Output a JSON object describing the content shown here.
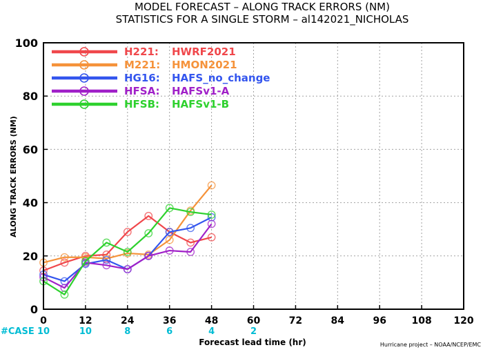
{
  "header": {
    "line1": "MODEL FORECAST – ALONG TRACK ERRORS (NM)",
    "line2": "STATISTICS FOR A SINGLE STORM – al142021_NICHOLAS"
  },
  "footer": {
    "case_label": "#CASE",
    "credit": "Hurricane project – NOAA/NCEP/EMC"
  },
  "colors": {
    "case_text": "#00bcd4",
    "grid": "#a0a0a0",
    "axis": "#000000"
  },
  "chart_data": {
    "type": "line",
    "title": "MODEL FORECAST – ALONG TRACK ERRORS (NM)",
    "subtitle": "STATISTICS FOR A SINGLE STORM – al142021_NICHOLAS",
    "xlabel": "Forecast lead time (hr)",
    "ylabel": "ALONG TRACK ERRORS (NM)",
    "xlim": [
      0,
      120
    ],
    "ylim": [
      0,
      100
    ],
    "xticks": [
      0,
      12,
      24,
      36,
      48,
      60,
      72,
      84,
      96,
      108,
      120
    ],
    "yticks": [
      0,
      20,
      40,
      60,
      80,
      100
    ],
    "grid": true,
    "legend_position": "top-left",
    "cases": [
      {
        "x": 0,
        "label": "10"
      },
      {
        "x": 12,
        "label": "10"
      },
      {
        "x": 24,
        "label": "8"
      },
      {
        "x": 36,
        "label": "6"
      },
      {
        "x": 48,
        "label": "4"
      },
      {
        "x": 60,
        "label": "2"
      }
    ],
    "series": [
      {
        "name": "H221:",
        "desc": "HWRF2021",
        "color": "#f0474b",
        "x": [
          0,
          6,
          12,
          18,
          24,
          30,
          36,
          42,
          48
        ],
        "values": [
          14.5,
          17.5,
          20,
          20.5,
          29,
          35,
          29,
          25,
          27
        ]
      },
      {
        "name": "M221:",
        "desc": "HMON2021",
        "color": "#f5923a",
        "x": [
          0,
          6,
          12,
          18,
          24,
          30,
          36,
          42,
          48
        ],
        "values": [
          17.5,
          19.5,
          19.5,
          19,
          21,
          20.5,
          26,
          37,
          46.5
        ]
      },
      {
        "name": "HG16:",
        "desc": "HAFS_no_change",
        "color": "#3355ee",
        "x": [
          0,
          6,
          12,
          18,
          24,
          30,
          36,
          42,
          48
        ],
        "values": [
          13,
          10.5,
          17,
          18.5,
          15,
          20,
          29,
          30.5,
          34.5
        ]
      },
      {
        "name": "HFSA:",
        "desc": "HAFSv1-A",
        "color": "#a020c8",
        "x": [
          0,
          6,
          12,
          18,
          24,
          30,
          36,
          42,
          48
        ],
        "values": [
          12,
          8,
          17.5,
          16.5,
          15,
          20,
          22,
          21.5,
          32
        ]
      },
      {
        "name": "HFSB:",
        "desc": "HAFSv1-B",
        "color": "#2ed12e",
        "x": [
          0,
          6,
          12,
          18,
          24,
          30,
          36,
          42,
          48
        ],
        "values": [
          10.5,
          5.5,
          18,
          25,
          21.5,
          28.5,
          38,
          36.5,
          35.5
        ]
      }
    ]
  }
}
